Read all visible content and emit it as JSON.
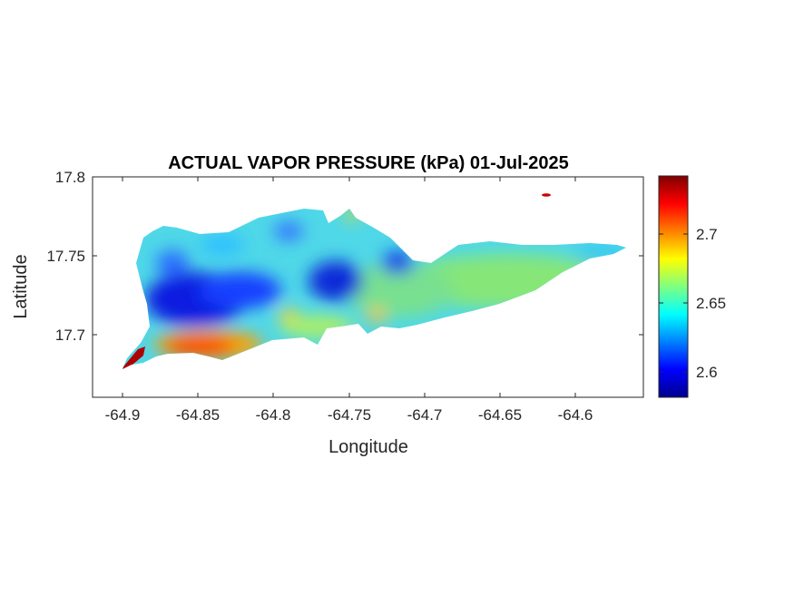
{
  "chart_data": {
    "type": "heatmap",
    "title": "ACTUAL VAPOR PRESSURE (kPa) 01-Jul-2025",
    "xlabel": "Longitude",
    "ylabel": "Latitude",
    "xlim": [
      -64.92,
      -64.54
    ],
    "ylim": [
      17.665,
      17.8
    ],
    "x_ticks": [
      "-64.9",
      "-64.85",
      "-64.8",
      "-64.75",
      "-64.7",
      "-64.65",
      "-64.6"
    ],
    "x_tick_values": [
      -64.9,
      -64.85,
      -64.8,
      -64.75,
      -64.7,
      -64.65,
      -64.6
    ],
    "y_ticks": [
      "17.7",
      "17.75",
      "17.8"
    ],
    "y_tick_values": [
      17.7,
      17.75,
      17.8
    ],
    "colormap": "jet",
    "colorbar": {
      "range": [
        2.582,
        2.742
      ],
      "ticks": [
        "2.6",
        "2.65",
        "2.7"
      ],
      "tick_values": [
        2.6,
        2.65,
        2.7
      ]
    },
    "grid": false,
    "region_value_estimates": [
      {
        "area": "southwest tip",
        "lon": -64.895,
        "lat": 17.683,
        "value": 2.742
      },
      {
        "area": "south coast",
        "lon": -64.848,
        "lat": 17.693,
        "value": 2.72
      },
      {
        "area": "west interior",
        "lon": -64.865,
        "lat": 17.717,
        "value": 2.59
      },
      {
        "area": "north-central",
        "lon": -64.758,
        "lat": 17.738,
        "value": 2.595
      },
      {
        "area": "northeast inlet",
        "lon": -64.722,
        "lat": 17.745,
        "value": 2.6
      },
      {
        "area": "central",
        "lon": -64.79,
        "lat": 17.713,
        "value": 2.69
      },
      {
        "area": "east",
        "lon": -64.66,
        "lat": 17.73,
        "value": 2.66
      },
      {
        "area": "northeast islet",
        "lon": -64.625,
        "lat": 17.788,
        "value": 2.72
      }
    ]
  }
}
